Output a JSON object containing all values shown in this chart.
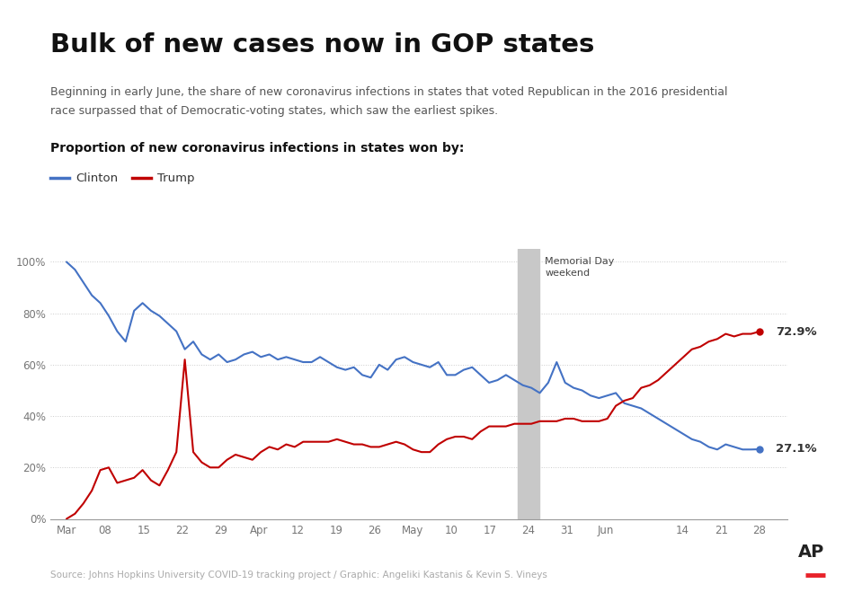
{
  "title": "Bulk of new cases now in GOP states",
  "subtitle1": "Beginning in early June, the share of new coronavirus infections in states that voted Republican in the 2016 presidential",
  "subtitle2": "race surpassed that of Democratic-voting states, which saw the earliest spikes.",
  "section_label": "Proportion of new coronavirus infections in states won by:",
  "source": "Source: Johns Hopkins University COVID-19 tracking project / Graphic: Angeliki Kastanis & Kevin S. Vineys",
  "memorial_day_label": "Memorial Day\nweekend",
  "end_label_clinton": "27.1%",
  "end_label_trump": "72.9%",
  "clinton_color": "#4472C4",
  "trump_color": "#C00000",
  "background_color": "#ffffff",
  "grid_color": "#cccccc",
  "memorial_day_x": 84,
  "clinton_data": [
    100,
    97,
    92,
    87,
    84,
    79,
    73,
    69,
    81,
    84,
    81,
    79,
    76,
    73,
    66,
    69,
    64,
    62,
    64,
    61,
    62,
    64,
    65,
    63,
    64,
    62,
    63,
    62,
    61,
    61,
    63,
    61,
    59,
    58,
    59,
    56,
    55,
    60,
    58,
    62,
    63,
    61,
    60,
    59,
    61,
    56,
    56,
    58,
    59,
    56,
    53,
    54,
    56,
    54,
    52,
    51,
    49,
    53,
    61,
    53,
    51,
    50,
    48,
    47,
    48,
    49,
    45,
    44,
    43,
    41,
    39,
    37,
    35,
    33,
    31,
    30,
    28,
    27,
    29,
    28,
    27,
    27,
    27.1
  ],
  "trump_data": [
    0,
    2,
    6,
    11,
    19,
    20,
    14,
    15,
    16,
    19,
    15,
    13,
    19,
    26,
    62,
    26,
    22,
    20,
    20,
    23,
    25,
    24,
    23,
    26,
    28,
    27,
    29,
    28,
    30,
    30,
    30,
    30,
    31,
    30,
    29,
    29,
    28,
    28,
    29,
    30,
    29,
    27,
    26,
    26,
    29,
    31,
    32,
    32,
    31,
    34,
    36,
    36,
    36,
    37,
    37,
    37,
    38,
    38,
    38,
    39,
    39,
    38,
    38,
    38,
    39,
    44,
    46,
    47,
    51,
    52,
    54,
    57,
    60,
    63,
    66,
    67,
    69,
    70,
    72,
    71,
    72,
    72,
    72.9
  ],
  "x_tick_labels": [
    "Mar",
    "08",
    "15",
    "22",
    "29",
    "Apr",
    "12",
    "19",
    "26",
    "May",
    "10",
    "17",
    "24",
    "31",
    "Jun",
    "14",
    "21",
    "28"
  ],
  "x_tick_positions": [
    0,
    7,
    14,
    21,
    28,
    35,
    42,
    49,
    56,
    63,
    70,
    77,
    84,
    91,
    98,
    112,
    119,
    126
  ],
  "ylim_min": 0,
  "ylim_max": 105,
  "yticks": [
    0,
    20,
    40,
    60,
    80,
    100
  ],
  "ytick_labels": [
    "0%",
    "20%",
    "40%",
    "60%",
    "80%",
    "100%"
  ]
}
